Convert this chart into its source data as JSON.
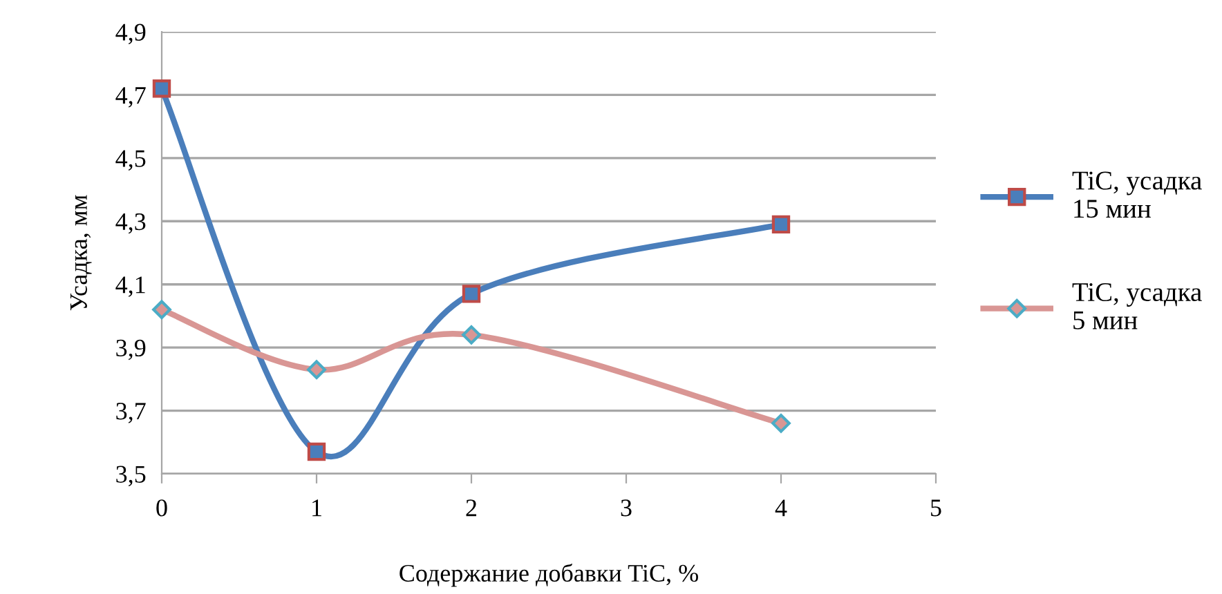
{
  "chart_data": {
    "type": "line",
    "xlabel": "Содержание добавки TiC, %",
    "ylabel": "Усадка, мм",
    "x": [
      0,
      1,
      2,
      4
    ],
    "series": [
      {
        "name": "TiC, усадка\n15 мин",
        "color": "#4a7ebb",
        "marker": "square",
        "values": [
          4.72,
          3.57,
          4.07,
          4.29
        ]
      },
      {
        "name": "TiC, усадка\n5 мин",
        "color": "#d99694",
        "marker": "diamond",
        "values": [
          4.02,
          3.83,
          3.94,
          3.66
        ]
      }
    ],
    "xlim": [
      0,
      5
    ],
    "xticks": [
      0,
      1,
      2,
      3,
      4,
      5
    ],
    "ylim": [
      3.5,
      4.9
    ],
    "yticks": [
      {
        "value": 3.5,
        "label": "3,5"
      },
      {
        "value": 3.7,
        "label": "3,7"
      },
      {
        "value": 3.9,
        "label": "3,9"
      },
      {
        "value": 4.1,
        "label": "4,1"
      },
      {
        "value": 4.3,
        "label": "4,3"
      },
      {
        "value": 4.5,
        "label": "4,5"
      },
      {
        "value": 4.7,
        "label": "4,7"
      },
      {
        "value": 4.9,
        "label": "4,9"
      }
    ],
    "grid": "y",
    "legend": "right"
  }
}
